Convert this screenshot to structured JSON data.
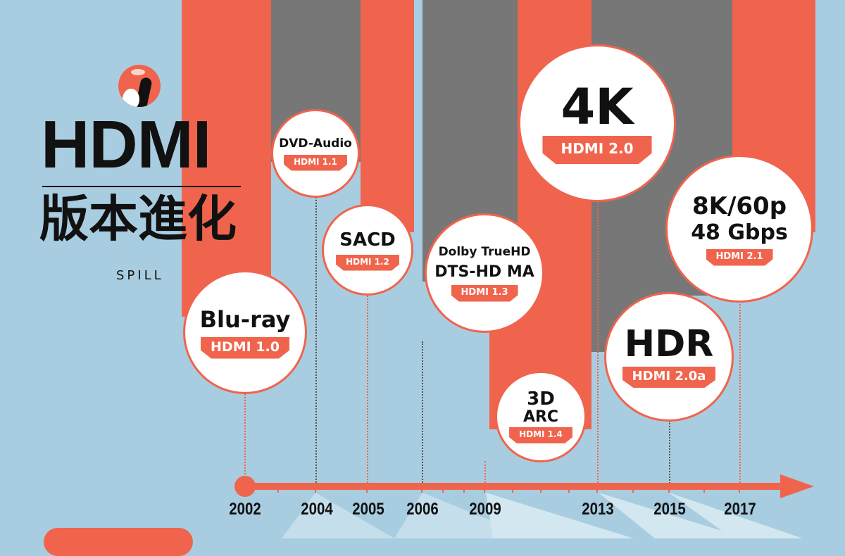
{
  "title": "HDMI",
  "subtitle": "版本進化",
  "brand": "SPILL",
  "colors": {
    "background": "#a9cde0",
    "accent": "#f0644d",
    "gray": "#777777"
  },
  "milestones": [
    {
      "feature": "Blu-ray",
      "version": "HDMI 1.0",
      "year": "2002"
    },
    {
      "feature": "DVD-Audio",
      "version": "HDMI 1.1",
      "year": "2004"
    },
    {
      "feature": "SACD",
      "version": "HDMI 1.2",
      "year": "2005"
    },
    {
      "feature": "Dolby TrueHD",
      "feature2": "DTS-HD MA",
      "version": "HDMI 1.3",
      "year": "2006"
    },
    {
      "feature": "3D",
      "feature2": "ARC",
      "version": "HDMI 1.4",
      "year": "2009"
    },
    {
      "feature": "4K",
      "version": "HDMI 2.0",
      "year": "2013"
    },
    {
      "feature": "HDR",
      "version": "HDMI 2.0a",
      "year": "2015"
    },
    {
      "feature": "8K/60p",
      "feature2": "48 Gbps",
      "version": "HDMI 2.1",
      "year": "2017"
    }
  ]
}
